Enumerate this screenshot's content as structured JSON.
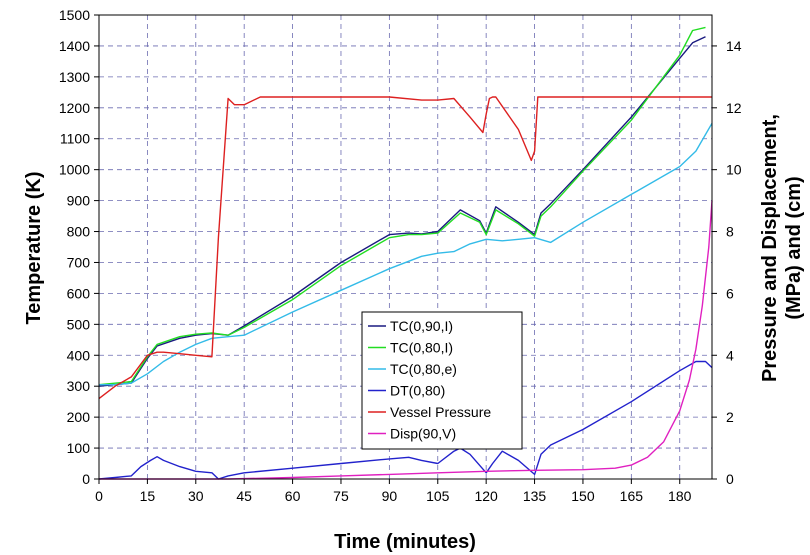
{
  "chart_data": {
    "type": "line",
    "xlabel": "Time (minutes)",
    "ylabel": "Temperature (K)",
    "y2label_lines": [
      "Pressure and Displacement,",
      "(MPa) and (cm)"
    ],
    "xlim": [
      0,
      190
    ],
    "ylim": [
      0,
      1500
    ],
    "y2lim": [
      0,
      15
    ],
    "x_ticks": [
      "0",
      "15",
      "30",
      "45",
      "60",
      "75",
      "90",
      "105",
      "120",
      "135",
      "150",
      "165",
      "180"
    ],
    "y_ticks": [
      "0",
      "100",
      "200",
      "300",
      "400",
      "500",
      "600",
      "700",
      "800",
      "900",
      "1000",
      "1100",
      "1200",
      "1300",
      "1400",
      "1500"
    ],
    "y2_ticks": [
      "0",
      "2",
      "4",
      "6",
      "8",
      "10",
      "12",
      "14"
    ],
    "grid": true,
    "legend_position": "center",
    "series": [
      {
        "name": "TC(0,90,I)",
        "color": "#1a1a80",
        "axis": "left",
        "x": [
          0,
          10,
          15,
          18,
          25,
          30,
          35,
          40,
          45,
          60,
          75,
          90,
          96,
          100,
          105,
          112,
          118,
          120,
          123,
          130,
          135,
          137,
          140,
          150,
          165,
          180,
          184,
          188
        ],
        "y": [
          300,
          310,
          390,
          430,
          455,
          465,
          470,
          465,
          495,
          590,
          700,
          790,
          795,
          792,
          800,
          870,
          835,
          795,
          880,
          830,
          790,
          860,
          890,
          1000,
          1170,
          1360,
          1410,
          1430
        ]
      },
      {
        "name": "TC(0,80,I)",
        "color": "#22dd22",
        "axis": "left",
        "x": [
          0,
          10,
          15,
          18,
          25,
          30,
          35,
          40,
          45,
          60,
          75,
          90,
          96,
          100,
          105,
          112,
          118,
          120,
          123,
          130,
          135,
          137,
          140,
          150,
          165,
          180,
          184,
          188
        ],
        "y": [
          305,
          315,
          395,
          435,
          460,
          468,
          472,
          465,
          490,
          580,
          690,
          780,
          790,
          790,
          795,
          860,
          830,
          790,
          870,
          825,
          785,
          850,
          880,
          995,
          1160,
          1370,
          1450,
          1460
        ]
      },
      {
        "name": "TC(0,80,e)",
        "color": "#33bbe8",
        "axis": "left",
        "x": [
          0,
          5,
          10,
          15,
          20,
          25,
          30,
          35,
          40,
          45,
          60,
          75,
          90,
          100,
          105,
          110,
          115,
          120,
          125,
          130,
          135,
          140,
          150,
          165,
          180,
          185,
          190
        ],
        "y": [
          305,
          305,
          310,
          340,
          380,
          410,
          435,
          455,
          460,
          465,
          540,
          610,
          680,
          720,
          730,
          735,
          760,
          775,
          770,
          775,
          780,
          765,
          830,
          920,
          1010,
          1060,
          1150
        ]
      },
      {
        "name": "DT(0,80)",
        "color": "#2222cc",
        "axis": "right",
        "x": [
          0,
          5,
          10,
          13,
          16,
          18,
          20,
          25,
          30,
          35,
          37,
          40,
          45,
          60,
          75,
          90,
          96,
          100,
          105,
          110,
          112,
          115,
          120,
          122,
          125,
          130,
          135,
          137,
          140,
          150,
          165,
          180,
          185,
          188,
          190
        ],
        "y": [
          0,
          0.05,
          0.1,
          0.4,
          0.6,
          0.72,
          0.6,
          0.4,
          0.25,
          0.2,
          0,
          0.1,
          0.2,
          0.35,
          0.5,
          0.65,
          0.7,
          0.6,
          0.5,
          0.9,
          1.0,
          0.8,
          0.2,
          0.5,
          0.9,
          0.6,
          0.15,
          0.8,
          1.1,
          1.6,
          2.5,
          3.5,
          3.8,
          3.8,
          3.6
        ]
      },
      {
        "name": "Vessel Pressure",
        "color": "#dd2020",
        "axis": "right",
        "x": [
          0,
          5,
          10,
          15,
          18,
          20,
          25,
          30,
          35,
          37,
          40,
          42,
          45,
          50,
          60,
          75,
          90,
          100,
          105,
          110,
          115,
          119,
          120,
          121,
          122,
          123,
          130,
          134,
          135,
          136,
          137,
          140,
          150,
          165,
          180,
          190
        ],
        "y": [
          2.6,
          3.0,
          3.3,
          4.0,
          4.1,
          4.1,
          4.05,
          4.0,
          3.95,
          7.8,
          12.3,
          12.1,
          12.1,
          12.35,
          12.35,
          12.35,
          12.35,
          12.25,
          12.25,
          12.3,
          11.7,
          11.2,
          11.8,
          12.3,
          12.35,
          12.35,
          11.3,
          10.3,
          10.6,
          12.35,
          12.35,
          12.35,
          12.35,
          12.35,
          12.35,
          12.35
        ]
      },
      {
        "name": "Disp(90,V)",
        "color": "#e020c0",
        "axis": "right",
        "x": [
          0,
          40,
          60,
          75,
          90,
          105,
          120,
          135,
          150,
          160,
          165,
          170,
          175,
          180,
          183,
          185,
          187,
          189,
          190
        ],
        "y": [
          0,
          0,
          0.05,
          0.1,
          0.15,
          0.2,
          0.25,
          0.28,
          0.3,
          0.35,
          0.45,
          0.7,
          1.2,
          2.2,
          3.2,
          4.2,
          5.6,
          7.5,
          9.0
        ]
      }
    ]
  }
}
